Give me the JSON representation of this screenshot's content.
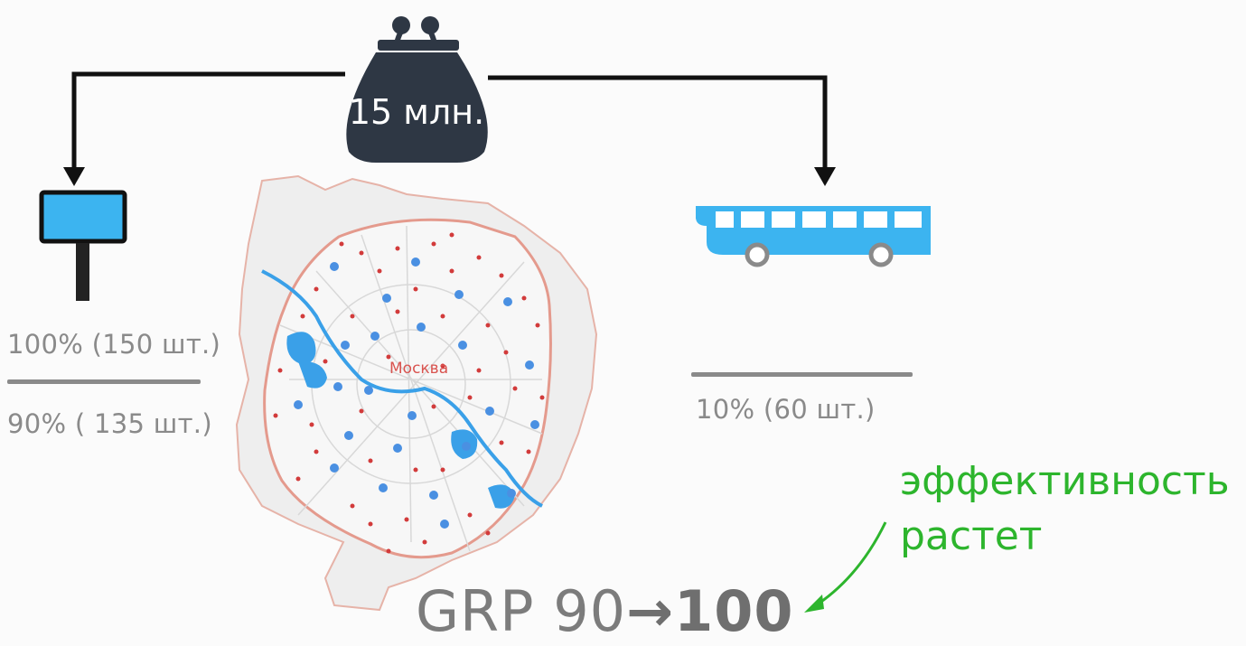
{
  "budget": {
    "label": "15 млн.",
    "icon": "money-purse-icon",
    "color": "#2e3744"
  },
  "billboard": {
    "icon": "billboard-icon",
    "color": "#3cb4f0",
    "stats": {
      "before": "100% (150 шт.)",
      "after": "90% ( 135 шт.)"
    }
  },
  "bus": {
    "icon": "bus-icon",
    "color": "#3cb4f0",
    "stats": {
      "after": "10% (60 шт.)"
    }
  },
  "map": {
    "city_label": "Москва",
    "icon": "moscow-map-icon"
  },
  "result": {
    "grp_from": "GRP 90",
    "arrow": "→",
    "grp_to": "100"
  },
  "note": {
    "line1": "эффективность",
    "line2": "растет",
    "color": "#2db52d"
  }
}
